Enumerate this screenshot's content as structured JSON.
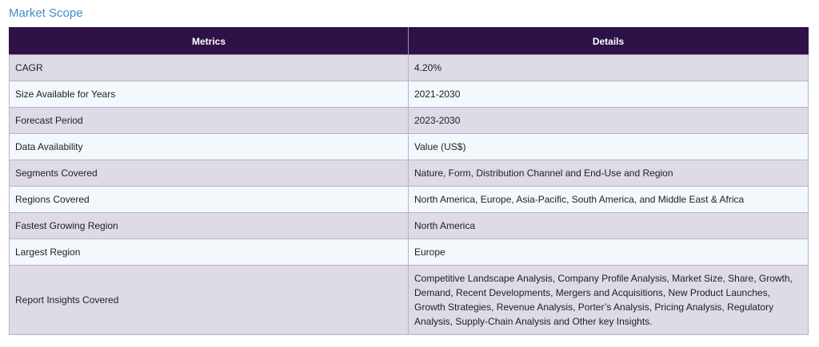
{
  "title": "Market Scope",
  "table": {
    "headers": [
      "Metrics",
      "Details"
    ],
    "rows": [
      {
        "metric": "CAGR",
        "detail": "4.20%"
      },
      {
        "metric": "Size Available for Years",
        "detail": "2021-2030"
      },
      {
        "metric": "Forecast Period",
        "detail": "2023-2030"
      },
      {
        "metric": "Data Availability",
        "detail": "Value (US$)"
      },
      {
        "metric": "Segments Covered",
        "detail": "Nature, Form, Distribution Channel and End-Use and Region"
      },
      {
        "metric": "Regions Covered",
        "detail": "North America, Europe, Asia-Pacific, South America, and Middle East & Africa"
      },
      {
        "metric": "Fastest Growing Region",
        "detail": "North America"
      },
      {
        "metric": "Largest Region",
        "detail": "Europe"
      },
      {
        "metric": "Report Insights Covered",
        "detail": "Competitive Landscape Analysis, Company Profile Analysis, Market Size, Share, Growth, Demand, Recent Developments, Mergers and Acquisitions, New Product Launches, Growth Strategies, Revenue Analysis, Porter’s Analysis, Pricing Analysis, Regulatory Analysis, Supply-Chain Analysis and Other key Insights."
      }
    ]
  }
}
